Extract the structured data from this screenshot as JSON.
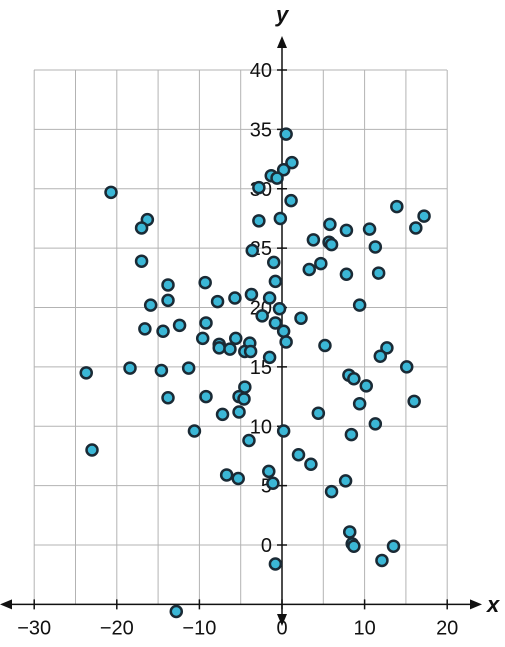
{
  "chart_data": {
    "type": "scatter",
    "title": "",
    "xlabel": "x",
    "ylabel": "y",
    "xlim": [
      -30,
      20
    ],
    "ylim": [
      -5,
      40
    ],
    "grid": true,
    "x_ticks": [
      -30,
      -20,
      -10,
      0,
      10,
      20
    ],
    "y_ticks": [
      0,
      5,
      10,
      15,
      20,
      25,
      30,
      35,
      40
    ],
    "x_tick_labels": [
      "−30",
      "−20",
      "−10",
      "0",
      "10",
      "20"
    ],
    "y_tick_labels": [
      "0",
      "5",
      "10",
      "15",
      "20",
      "25",
      "30",
      "35",
      "40"
    ],
    "colors": {
      "point_fill": "#3bb7d6",
      "point_stroke": "#1a2a35",
      "grid": "#b3b3b3",
      "axis": "#111111"
    },
    "points": [
      {
        "x": 0.5,
        "y": 34.6
      },
      {
        "x": 1.2,
        "y": 32.2
      },
      {
        "x": 0.2,
        "y": 31.6
      },
      {
        "x": -1.3,
        "y": 31.1
      },
      {
        "x": -0.6,
        "y": 30.9
      },
      {
        "x": -2.8,
        "y": 30.1
      },
      {
        "x": 1.1,
        "y": 29.0
      },
      {
        "x": -20.7,
        "y": 29.7
      },
      {
        "x": -16.3,
        "y": 27.4
      },
      {
        "x": -17.0,
        "y": 26.7
      },
      {
        "x": -2.8,
        "y": 27.3
      },
      {
        "x": -0.2,
        "y": 27.5
      },
      {
        "x": 5.8,
        "y": 27.0
      },
      {
        "x": 7.8,
        "y": 26.5
      },
      {
        "x": 10.6,
        "y": 26.6
      },
      {
        "x": 13.9,
        "y": 28.5
      },
      {
        "x": 16.2,
        "y": 26.7
      },
      {
        "x": 17.2,
        "y": 27.7
      },
      {
        "x": 3.8,
        "y": 25.7
      },
      {
        "x": 5.7,
        "y": 25.5
      },
      {
        "x": 6.0,
        "y": 25.3
      },
      {
        "x": 11.3,
        "y": 25.1
      },
      {
        "x": -3.6,
        "y": 24.8
      },
      {
        "x": -17.0,
        "y": 23.9
      },
      {
        "x": -1.0,
        "y": 23.8
      },
      {
        "x": 4.7,
        "y": 23.7
      },
      {
        "x": 3.3,
        "y": 23.2
      },
      {
        "x": 7.8,
        "y": 22.8
      },
      {
        "x": 11.7,
        "y": 22.9
      },
      {
        "x": -13.8,
        "y": 21.9
      },
      {
        "x": -9.3,
        "y": 22.1
      },
      {
        "x": -0.8,
        "y": 22.2
      },
      {
        "x": -3.7,
        "y": 21.1
      },
      {
        "x": -1.5,
        "y": 20.8
      },
      {
        "x": -5.7,
        "y": 20.8
      },
      {
        "x": -7.8,
        "y": 20.5
      },
      {
        "x": -13.8,
        "y": 20.6
      },
      {
        "x": -15.9,
        "y": 20.2
      },
      {
        "x": -0.3,
        "y": 19.9
      },
      {
        "x": 9.4,
        "y": 20.2
      },
      {
        "x": -2.4,
        "y": 19.3
      },
      {
        "x": 2.3,
        "y": 19.1
      },
      {
        "x": -9.2,
        "y": 18.7
      },
      {
        "x": -12.4,
        "y": 18.5
      },
      {
        "x": -0.8,
        "y": 18.7
      },
      {
        "x": -16.6,
        "y": 18.2
      },
      {
        "x": -14.4,
        "y": 18.0
      },
      {
        "x": 0.2,
        "y": 18.0
      },
      {
        "x": -9.6,
        "y": 17.4
      },
      {
        "x": -5.6,
        "y": 17.4
      },
      {
        "x": -3.9,
        "y": 17.0
      },
      {
        "x": 0.5,
        "y": 17.1
      },
      {
        "x": -7.6,
        "y": 16.9
      },
      {
        "x": -7.6,
        "y": 16.6
      },
      {
        "x": -6.3,
        "y": 16.5
      },
      {
        "x": -4.5,
        "y": 16.3
      },
      {
        "x": -3.8,
        "y": 16.3
      },
      {
        "x": 5.2,
        "y": 16.8
      },
      {
        "x": 12.7,
        "y": 16.6
      },
      {
        "x": 11.9,
        "y": 15.9
      },
      {
        "x": -1.5,
        "y": 15.8
      },
      {
        "x": -18.4,
        "y": 14.9
      },
      {
        "x": -11.3,
        "y": 14.9
      },
      {
        "x": -14.6,
        "y": 14.7
      },
      {
        "x": 15.1,
        "y": 15.0
      },
      {
        "x": -23.7,
        "y": 14.5
      },
      {
        "x": 8.1,
        "y": 14.3
      },
      {
        "x": 8.7,
        "y": 14.0
      },
      {
        "x": 10.2,
        "y": 13.4
      },
      {
        "x": -4.5,
        "y": 13.3
      },
      {
        "x": -13.8,
        "y": 12.4
      },
      {
        "x": -9.2,
        "y": 12.5
      },
      {
        "x": -5.2,
        "y": 12.5
      },
      {
        "x": -4.6,
        "y": 12.3
      },
      {
        "x": 9.4,
        "y": 11.9
      },
      {
        "x": 16.0,
        "y": 12.1
      },
      {
        "x": -5.2,
        "y": 11.2
      },
      {
        "x": 4.4,
        "y": 11.1
      },
      {
        "x": -7.2,
        "y": 11.0
      },
      {
        "x": 11.3,
        "y": 10.2
      },
      {
        "x": -10.6,
        "y": 9.6
      },
      {
        "x": 0.2,
        "y": 9.6
      },
      {
        "x": 8.4,
        "y": 9.3
      },
      {
        "x": -4.0,
        "y": 8.8
      },
      {
        "x": -23.0,
        "y": 8.0
      },
      {
        "x": 2.0,
        "y": 7.6
      },
      {
        "x": 3.5,
        "y": 6.8
      },
      {
        "x": -1.6,
        "y": 6.2
      },
      {
        "x": -6.7,
        "y": 5.9
      },
      {
        "x": -5.3,
        "y": 5.6
      },
      {
        "x": 7.7,
        "y": 5.4
      },
      {
        "x": -1.1,
        "y": 5.2
      },
      {
        "x": 6.0,
        "y": 4.5
      },
      {
        "x": 8.2,
        "y": 1.1
      },
      {
        "x": 8.5,
        "y": 0.1
      },
      {
        "x": 8.7,
        "y": -0.1
      },
      {
        "x": 13.5,
        "y": -0.1
      },
      {
        "x": 12.1,
        "y": -1.3
      },
      {
        "x": -0.8,
        "y": -1.6
      },
      {
        "x": -12.8,
        "y": -5.6
      }
    ]
  }
}
